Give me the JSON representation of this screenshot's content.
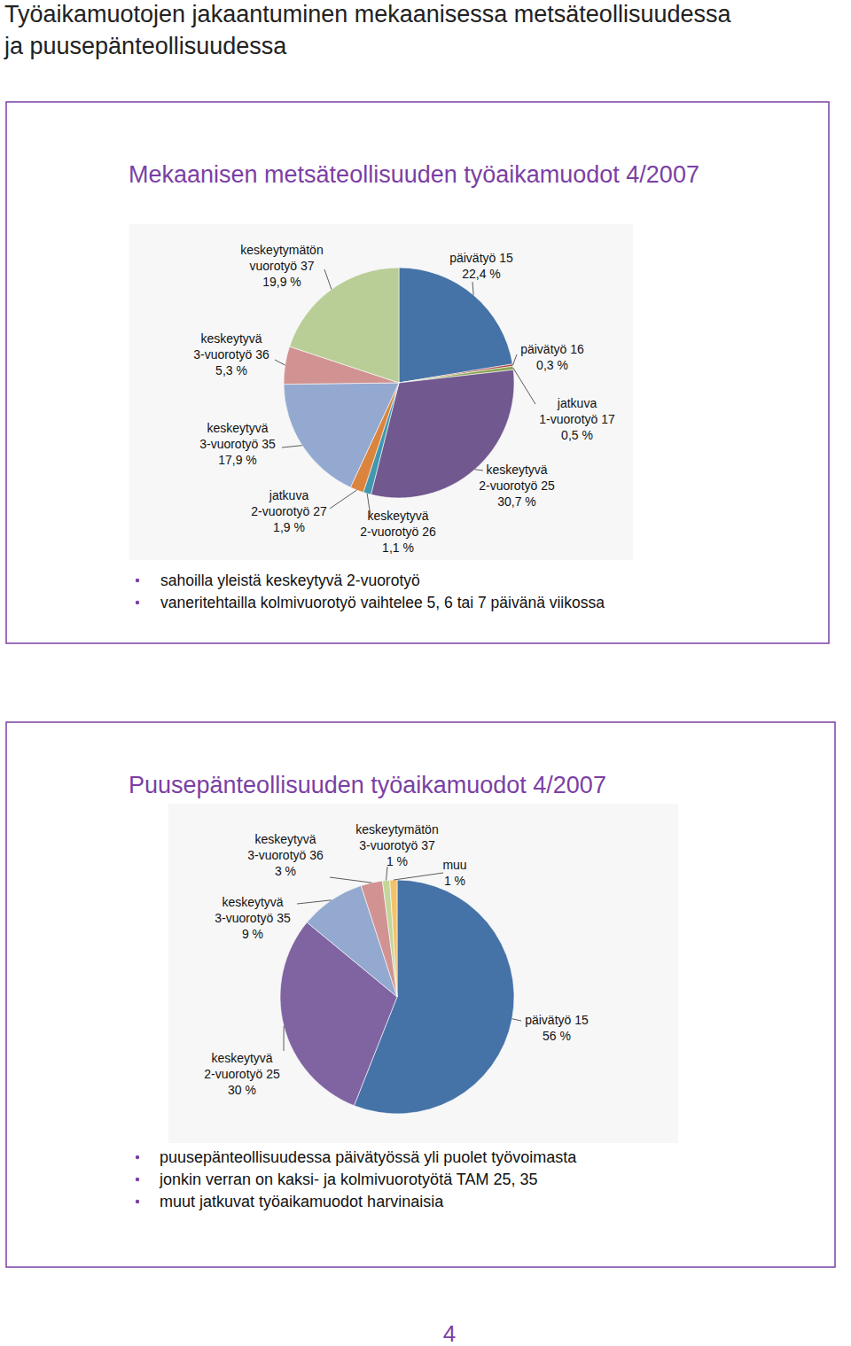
{
  "page_title": [
    "Työaikamuotojen jakaantuminen mekaanisessa metsäteollisuudessa",
    "ja puusepänteollisuudessa"
  ],
  "chart_data": [
    {
      "type": "pie",
      "title": "Mekaanisen metsäteollisuuden työaikamuodot 4/2007",
      "categories": [
        "päivätyö 15",
        "päivätyö 16",
        "jatkuva\n1-vuorotyö 17",
        "keskeytyvä\n2-vuorotyö 25",
        "keskeytyvä\n2-vuorotyö 26",
        "jatkuva\n2-vuorotyö 27",
        "keskeytyvä\n3-vuorotyö 35",
        "keskeytyvä\n3-vuorotyö 36",
        "keskeytymätön\nvuorotyö 37"
      ],
      "values": [
        22.4,
        0.3,
        0.5,
        30.7,
        1.1,
        1.9,
        17.9,
        5.3,
        19.9
      ],
      "value_labels": [
        "22,4 %",
        "0,3 %",
        "0,5 %",
        "30,7 %",
        "1,1 %",
        "1,9 %",
        "17,9 %",
        "5,3 %",
        "19,9 %"
      ],
      "colors": [
        "#4572a7",
        "#aa4643",
        "#89a54e",
        "#71588f",
        "#4198af",
        "#db843d",
        "#93a9cf",
        "#d19392",
        "#b9cd96"
      ],
      "notes": [
        "sahoilla yleistä keskeytyvä 2-vuorotyö",
        "vaneritehtailla kolmivuorotyö vaihtelee 5, 6 tai 7 päivänä viikossa"
      ]
    },
    {
      "type": "pie",
      "title": "Puusepänteollisuuden työaikamuodot 4/2007",
      "categories": [
        "päivätyö 15",
        "keskeytyvä\n2-vuorotyö 25",
        "keskeytyvä\n3-vuorotyö 35",
        "keskeytyvä\n3-vuorotyö 36",
        "keskeytymätön\n3-vuorotyö 37",
        "muu"
      ],
      "values": [
        56,
        30,
        9,
        3,
        1,
        1
      ],
      "value_labels": [
        "56 %",
        "30 %",
        "9 %",
        "3 %",
        "1 %",
        "1 %"
      ],
      "colors": [
        "#4572a7",
        "#8064a2",
        "#93a9cf",
        "#d19392",
        "#c3d69b",
        "#f2c26b"
      ],
      "notes": [
        "puusepänteollisuudessa päivätyössä yli puolet työvoimasta",
        "jonkin verran on kaksi- ja kolmivuorotyötä TAM 25, 35",
        "muut jatkuvat työaikamuodot harvinaisia"
      ]
    }
  ],
  "page_number": "4"
}
